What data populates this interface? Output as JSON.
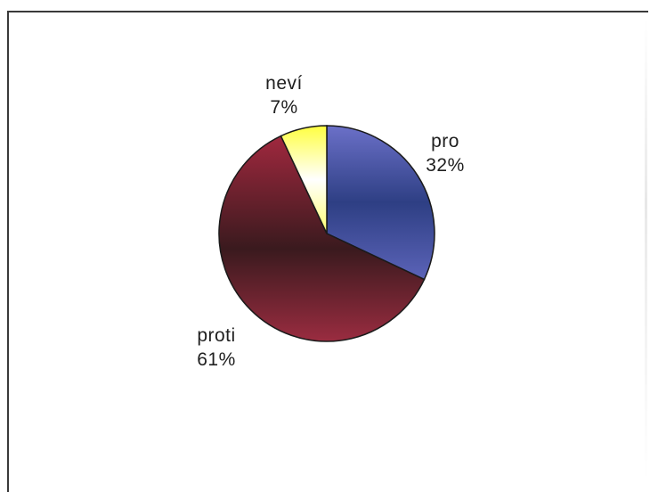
{
  "chart_data": {
    "type": "pie",
    "title": "",
    "slices": [
      {
        "label": "pro",
        "percent_label": "32%",
        "value": 32,
        "color": "#4a54a0"
      },
      {
        "label": "proti",
        "percent_label": "61%",
        "value": 61,
        "color": "#8a2a3c"
      },
      {
        "label": "neví",
        "percent_label": "7%",
        "value": 7,
        "color": "#ffff66"
      }
    ],
    "legend": "none",
    "start_angle_deg": 0,
    "direction": "clockwise"
  }
}
